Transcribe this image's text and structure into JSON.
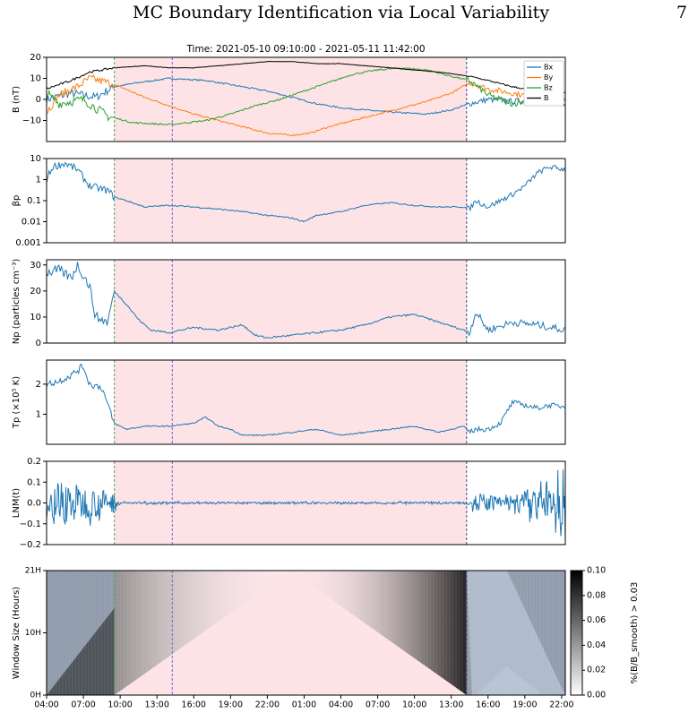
{
  "page": {
    "running_title": "MC Boundary Identification via Local Variability",
    "page_number": "7"
  },
  "chart_data": [
    {
      "type": "line",
      "title": "Time: 2021-05-10 09:10:00 - 2021-05-11 11:42:00",
      "ylabel": "B (nT)",
      "ylim": [
        -20,
        20
      ],
      "yticks": [
        "20",
        "10",
        "0",
        "−10"
      ],
      "legend": {
        "placement": "top-right",
        "entries": [
          "Bx",
          "By",
          "Bz",
          "B"
        ]
      },
      "series": [
        {
          "name": "Bx",
          "color": "#1f77b4",
          "x": [
            0,
            2,
            4,
            5.5,
            7.5,
            10,
            13,
            14,
            16,
            18,
            20,
            22,
            24,
            26,
            28,
            31,
            33,
            34.5,
            36,
            38,
            42.3
          ],
          "y": [
            0,
            3,
            1,
            6,
            8,
            10,
            9,
            8,
            6,
            4,
            1,
            -2,
            -4,
            -5,
            -6,
            -7,
            -5,
            -2,
            0,
            -1,
            1
          ]
        },
        {
          "name": "By",
          "color": "#ff7f0e",
          "x": [
            0,
            1,
            2.5,
            3.5,
            5,
            6,
            8,
            10,
            12,
            14,
            16,
            18,
            20,
            21.5,
            23,
            25,
            27,
            29,
            31,
            33,
            34.5,
            36,
            38,
            40,
            42.3
          ],
          "y": [
            -6,
            2,
            6,
            10,
            8,
            6,
            1,
            -3,
            -7,
            -10,
            -13,
            -16,
            -17,
            -16,
            -13,
            -10,
            -7,
            -4,
            -1,
            3,
            8,
            5,
            3,
            1,
            -1
          ]
        },
        {
          "name": "Bz",
          "color": "#2ca02c",
          "x": [
            0,
            1,
            3,
            5,
            7,
            10,
            13,
            15,
            17,
            19,
            21,
            23,
            25,
            27,
            29,
            31,
            33,
            34.5,
            36,
            38,
            40,
            42.3
          ],
          "y": [
            3,
            -2,
            0,
            -8,
            -11,
            -12,
            -10,
            -7,
            -3,
            0,
            4,
            8,
            12,
            14,
            15,
            14,
            11,
            9,
            2,
            -2,
            0,
            -2
          ]
        },
        {
          "name": "B",
          "color": "#000000",
          "x": [
            0,
            2,
            3.5,
            5.5,
            8,
            10,
            12,
            14,
            16,
            18,
            20,
            22,
            24,
            26,
            28,
            30,
            32,
            34.5,
            36,
            38,
            40,
            42.3
          ],
          "y": [
            5,
            9,
            13,
            15,
            16,
            15,
            15,
            16,
            17,
            18,
            18,
            17,
            17,
            16,
            15,
            14,
            13,
            11,
            9,
            6,
            4,
            3
          ]
        }
      ]
    },
    {
      "type": "line",
      "ylabel": "βp",
      "scale": "log",
      "ylim": [
        0.001,
        10
      ],
      "yticks": [
        "10",
        "1",
        "0.1",
        "0.01",
        "0.001"
      ],
      "series": [
        {
          "color": "#1f77b4",
          "x": [
            0,
            0.5,
            1.5,
            2.5,
            3.5,
            5,
            5.5,
            6.5,
            8,
            10,
            12,
            14,
            16,
            18,
            20,
            21,
            22,
            24,
            26,
            28,
            30,
            32,
            34,
            34.5,
            35,
            36,
            37,
            38,
            39,
            40,
            41,
            42.3
          ],
          "y": [
            1,
            4,
            6,
            3,
            0.5,
            0.3,
            0.15,
            0.1,
            0.05,
            0.06,
            0.05,
            0.04,
            0.03,
            0.02,
            0.015,
            0.01,
            0.02,
            0.03,
            0.06,
            0.08,
            0.06,
            0.05,
            0.05,
            0.04,
            0.1,
            0.05,
            0.1,
            0.2,
            0.5,
            2,
            4,
            3
          ]
        }
      ]
    },
    {
      "type": "line",
      "ylabel": "Np (particles cm⁻³)",
      "ylim": [
        0,
        32
      ],
      "yticks": [
        "30",
        "20",
        "10",
        "0"
      ],
      "series": [
        {
          "color": "#1f77b4",
          "x": [
            0,
            1,
            2,
            2.5,
            3.5,
            4,
            5,
            5.5,
            6.5,
            7.5,
            8.5,
            10,
            12,
            14,
            16,
            17,
            18,
            20,
            22,
            24,
            26,
            28,
            30,
            32,
            34,
            34.5,
            35,
            36,
            38,
            40,
            42.3
          ],
          "y": [
            27,
            28,
            25,
            30,
            22,
            10,
            8,
            20,
            15,
            9,
            5,
            4,
            6,
            5,
            7,
            3,
            2,
            3,
            4,
            5,
            7,
            10,
            11,
            8,
            5,
            4,
            12,
            5,
            8,
            7,
            5
          ]
        }
      ]
    },
    {
      "type": "line",
      "ylabel": "Tp (×10⁵ K)",
      "ylim": [
        0,
        2.8
      ],
      "yticks": [
        "2",
        "1"
      ],
      "series": [
        {
          "color": "#1f77b4",
          "x": [
            0,
            1,
            2,
            3,
            3.5,
            4.5,
            5,
            5.5,
            6.5,
            8,
            10,
            12,
            13,
            14,
            15,
            16,
            18,
            20,
            22,
            24,
            26,
            28,
            30,
            32,
            34,
            34.5,
            35,
            36,
            37,
            38,
            39,
            40,
            41,
            42.3
          ],
          "y": [
            2,
            2.1,
            2.3,
            2.6,
            2.0,
            1.9,
            1.3,
            0.7,
            0.5,
            0.6,
            0.6,
            0.7,
            0.9,
            0.6,
            0.5,
            0.3,
            0.3,
            0.4,
            0.5,
            0.3,
            0.4,
            0.5,
            0.6,
            0.4,
            0.6,
            0.4,
            0.5,
            0.5,
            0.7,
            1.4,
            1.3,
            1.2,
            1.3,
            1.25
          ]
        }
      ]
    },
    {
      "type": "line",
      "ylabel": "LNM(t)",
      "ylim": [
        -0.2,
        0.2
      ],
      "yticks": [
        "0.2",
        "0.1",
        "0.0",
        "−0.1",
        "−0.2"
      ],
      "noise_profile": {
        "x": [
          0,
          1,
          2,
          3,
          4,
          5,
          5.5,
          6,
          34,
          34.5,
          35,
          36,
          37,
          38,
          39,
          40,
          41,
          42.3
        ],
        "amp": [
          0.05,
          0.12,
          0.1,
          0.08,
          0.07,
          0.06,
          0.05,
          0.005,
          0.005,
          0.01,
          0.05,
          0.04,
          0.03,
          0.04,
          0.06,
          0.1,
          0.12,
          0.2
        ]
      }
    },
    {
      "type": "heatmap",
      "ylabel": "Window Size (Hours)",
      "yticks": [
        "21H",
        "10H",
        "0H"
      ],
      "colorbar": {
        "label": "%(B/B_smooth) > 0.03",
        "ticks": [
          "0.10",
          "0.08",
          "0.06",
          "0.04",
          "0.02",
          "0.00"
        ],
        "range": [
          0,
          0.1
        ]
      }
    }
  ],
  "shared": {
    "xaxis": {
      "start": "04:00",
      "ticks": [
        "04:00",
        "07:00",
        "10:00",
        "13:00",
        "16:00",
        "19:00",
        "22:00",
        "01:00",
        "04:00",
        "07:00",
        "10:00",
        "13:00",
        "16:00",
        "19:00",
        "22:00"
      ],
      "span_hours": 42.3
    },
    "markers": {
      "mc_start_hour": 5.53,
      "mc_end_hour": 34.25,
      "mid_line_hour": 10.25,
      "shade_color": "#fde3e6",
      "start_line_color": "#56a356",
      "mid_line_color": "#7b61d9",
      "end_line_color": "#3b4a8c"
    }
  }
}
